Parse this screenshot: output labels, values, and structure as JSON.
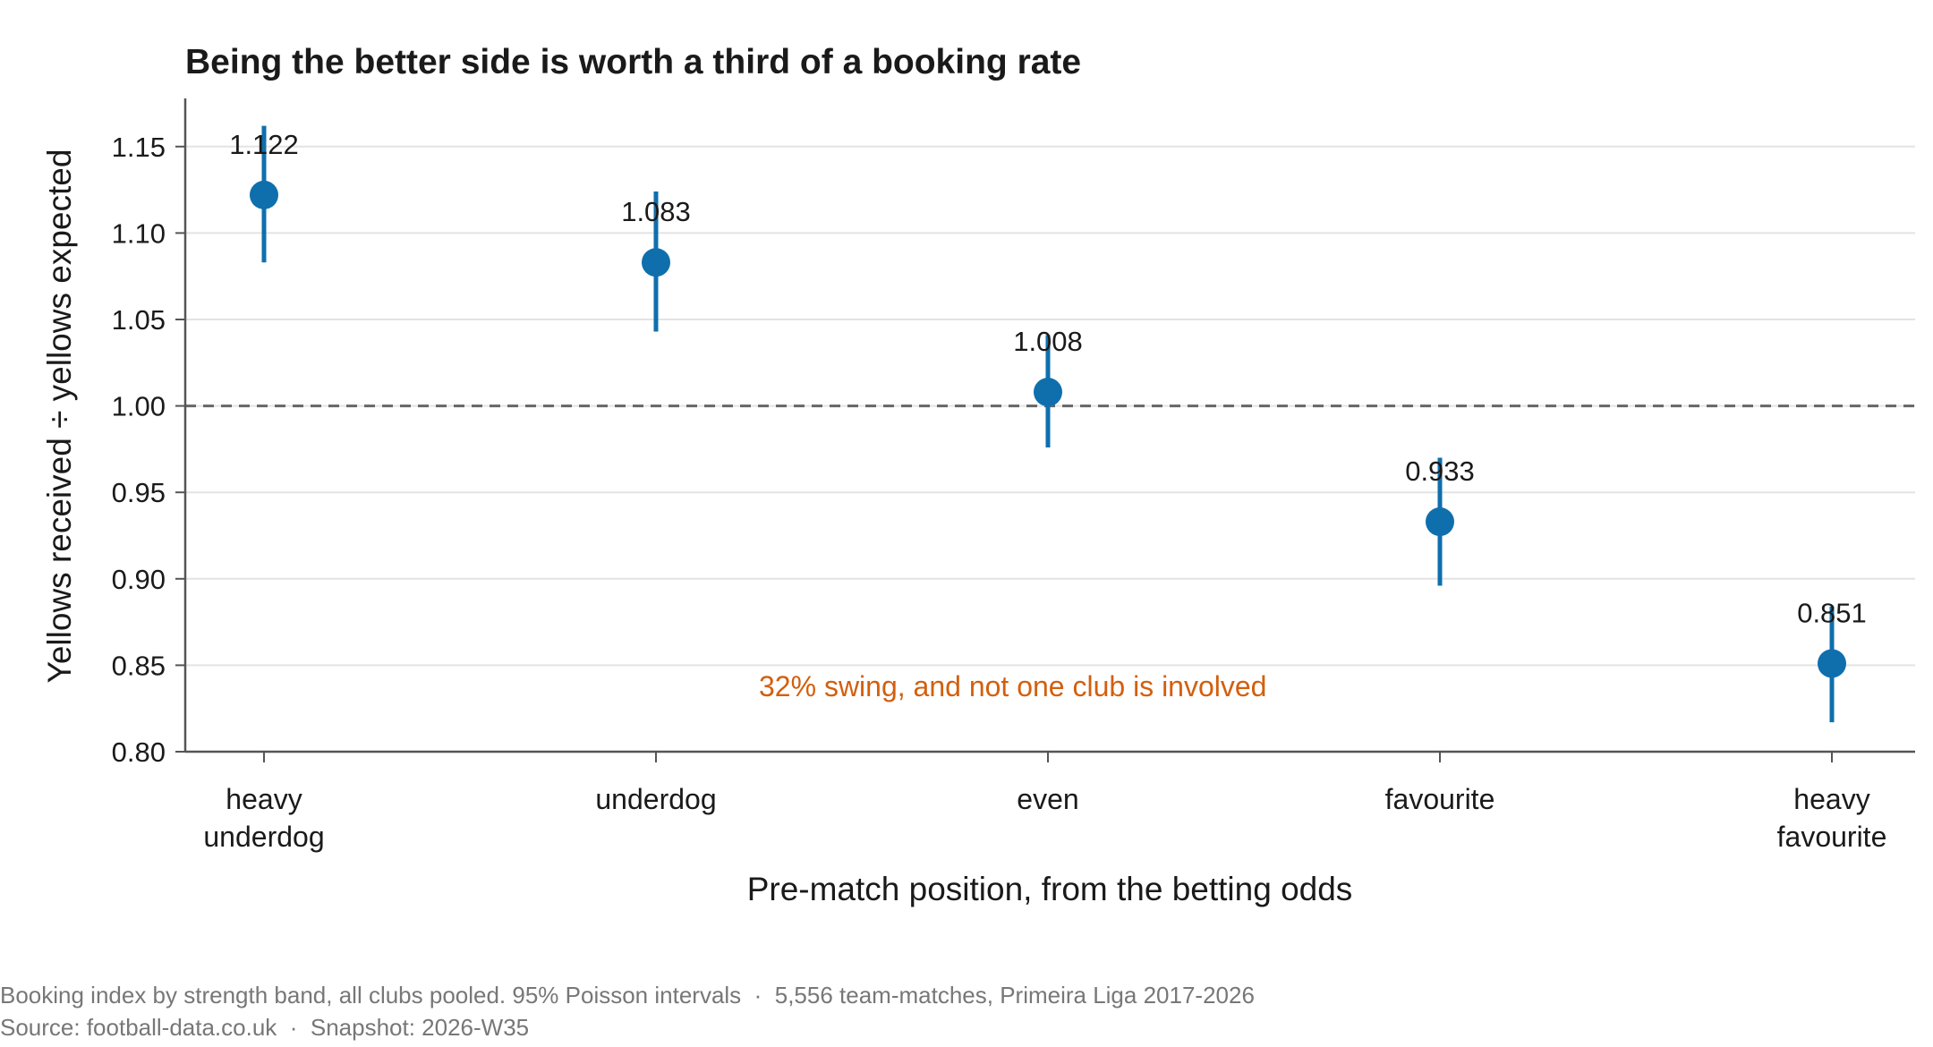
{
  "chart_data": {
    "type": "scatter",
    "title": "Being the better side is worth a third of a booking rate",
    "xlabel": "Pre-match position, from the betting odds",
    "ylabel": "Yellows received ÷ yellows expected",
    "categories": [
      [
        "heavy",
        "underdog"
      ],
      [
        "underdog"
      ],
      [
        "even"
      ],
      [
        "favourite"
      ],
      [
        "heavy",
        "favourite"
      ]
    ],
    "values": [
      1.122,
      1.083,
      1.008,
      0.933,
      0.851
    ],
    "value_labels": [
      "1.122",
      "1.083",
      "1.008",
      "0.933",
      "0.851"
    ],
    "ci_low": [
      1.083,
      1.043,
      0.976,
      0.896,
      0.817
    ],
    "ci_high": [
      1.162,
      1.124,
      1.041,
      0.97,
      0.884
    ],
    "error_bars": "95% Poisson intervals",
    "reference_line": 1.0,
    "ylim": [
      0.8,
      1.18
    ],
    "yticks": [
      "0.80",
      "0.85",
      "0.90",
      "0.95",
      "1.00",
      "1.05",
      "1.10",
      "1.15"
    ],
    "grid": "horizontal",
    "color": "#0f6fad",
    "annotation": {
      "text": "32% swing, and not one club is involved",
      "color": "#d35f0e"
    }
  },
  "footer": {
    "line1": "Booking index by strength band, all clubs pooled. 95% Poisson intervals  ·  5,556 team-matches, Primeira Liga 2017-2026",
    "line2": "Source: football-data.co.uk  ·  Snapshot: 2026-W35"
  }
}
